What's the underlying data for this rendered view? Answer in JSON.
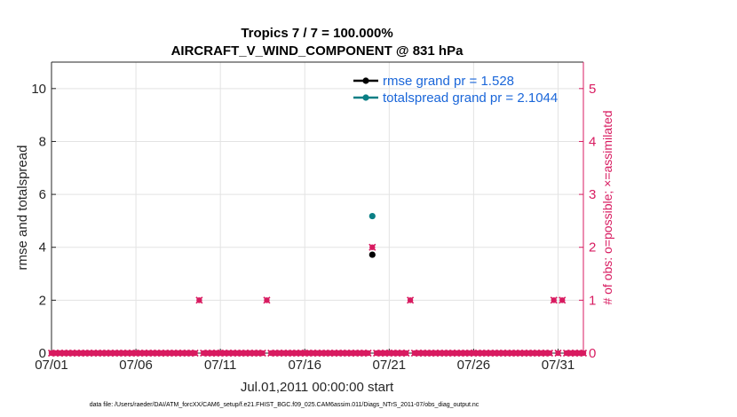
{
  "chart_data": {
    "type": "scatter",
    "title": "Tropics 7 / 7 = 100.000%",
    "subtitle": "AIRCRAFT_V_WIND_COMPONENT @ 831 hPa",
    "xlabel": "Jul.01,2011 00:00:00 start",
    "ylabel": "rmse and totalspread",
    "ylabel_right": "# of obs: o=possible; ×=assimilated",
    "xlim": [
      0,
      31.5
    ],
    "ylim": [
      0,
      11
    ],
    "ylim_right": [
      0,
      5.5
    ],
    "x_tick_labels": [
      "07/01",
      "07/06",
      "07/11",
      "07/16",
      "07/21",
      "07/26",
      "07/31"
    ],
    "x_tick_values": [
      0,
      5,
      10,
      15,
      20,
      25,
      30
    ],
    "y_ticks": [
      0,
      2,
      4,
      6,
      8,
      10
    ],
    "y_ticks_right": [
      0,
      1,
      2,
      3,
      4,
      5
    ],
    "grid": true,
    "legend_position": "top-right",
    "series": [
      {
        "name": "rmse grand pr = 1.528",
        "color": "#000000",
        "axis": "left",
        "x": [
          19.0
        ],
        "y": [
          3.72
        ]
      },
      {
        "name": "totalspread grand pr = 2.1044",
        "color": "#0a7f85",
        "axis": "left",
        "x": [
          19.0
        ],
        "y": [
          5.18
        ]
      }
    ],
    "obs_count": {
      "name": "# of obs (possible / assimilated)",
      "color": "#d81b60",
      "axis": "right",
      "interval": 0.25,
      "count": 127,
      "nonzero": [
        {
          "x": 8.75,
          "y": 1
        },
        {
          "x": 12.75,
          "y": 1
        },
        {
          "x": 19.0,
          "y": 2
        },
        {
          "x": 21.25,
          "y": 1
        },
        {
          "x": 29.75,
          "y": 1
        },
        {
          "x": 30.25,
          "y": 1
        }
      ]
    },
    "footer": "data file: /Users/raeder/DAI/ATM_forcXX/CAM6_setup/f.e21.FHIST_BGC.f09_025.CAM6assim.011/Diags_NTrS_2011-07/obs_diag_output.nc"
  }
}
